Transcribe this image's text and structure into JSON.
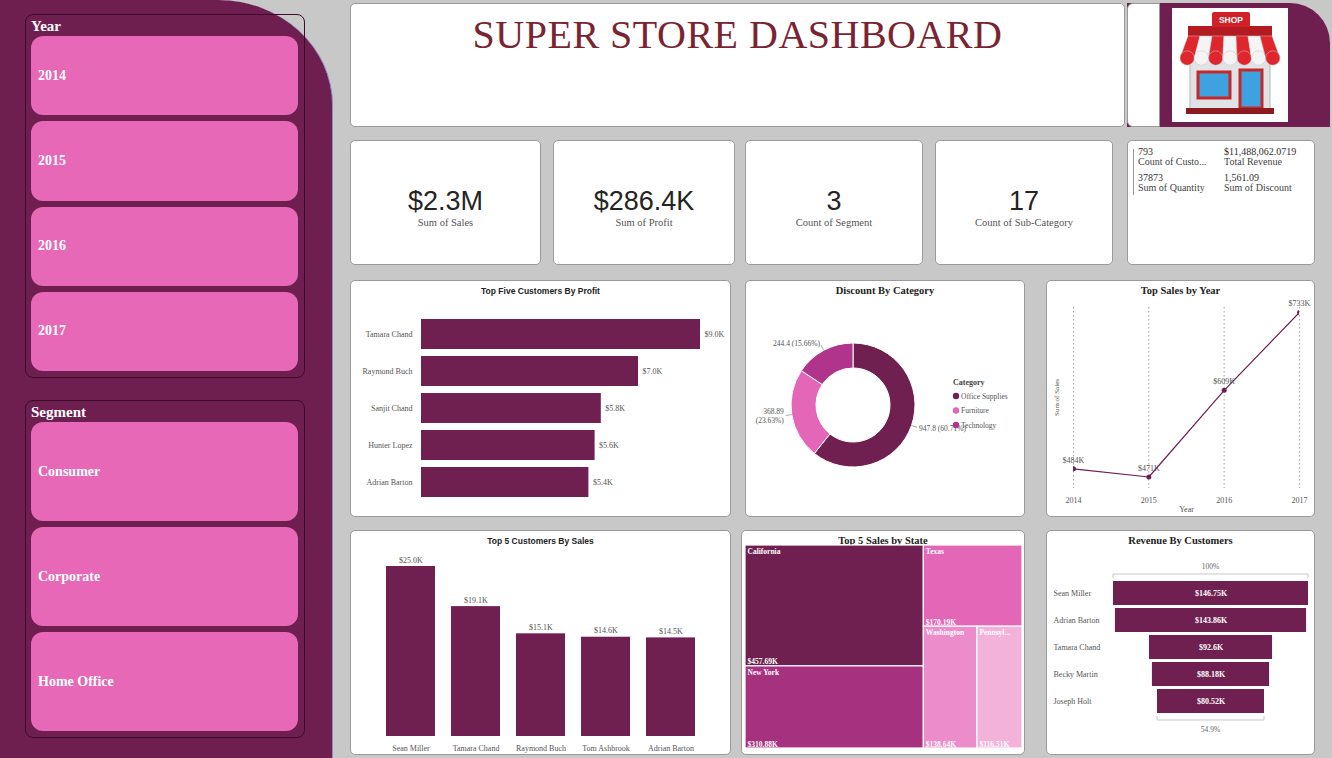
{
  "header": {
    "title": "SUPER STORE DASHBOARD",
    "icon_text": "SHOP"
  },
  "slicers": [
    {
      "title": "Year",
      "items": [
        "2014",
        "2015",
        "2016",
        "2017"
      ]
    },
    {
      "title": "Segment",
      "items": [
        "Consumer",
        "Corporate",
        "Home Office"
      ]
    }
  ],
  "cards": [
    {
      "value": "$2.3M",
      "label": "Sum of Sales"
    },
    {
      "value": "$286.4K",
      "label": "Sum of Profit"
    },
    {
      "value": "3",
      "label": "Count of Segment"
    },
    {
      "value": "17",
      "label": "Count of Sub-Category"
    }
  ],
  "multi_row_card": [
    {
      "value": "793",
      "label": "Count of Custo..."
    },
    {
      "value": "$11,488,062.0719",
      "label": "Total Revenue"
    },
    {
      "value": "37873",
      "label": "Sum of Quantity"
    },
    {
      "value": "1,561.09",
      "label": "Sum of Discount"
    }
  ],
  "chart_data": [
    {
      "type": "bar",
      "title": "Top Five Customers By Profit",
      "orientation": "horizontal",
      "categories": [
        "Tamara Chand",
        "Raymond Buch",
        "Sanjit Chand",
        "Hunter Lopez",
        "Adrian Barton"
      ],
      "values": [
        9000,
        7000,
        5800,
        5600,
        5400
      ],
      "value_labels": [
        "$9.0K",
        "$7.0K",
        "$5.8K",
        "$5.6K",
        "$5.4K"
      ],
      "color": "#701f51",
      "data_labels": true,
      "tick_labels": "y"
    },
    {
      "type": "pie",
      "title": "Discount By Category",
      "categories": [
        "Office Supplies",
        "Furniture",
        "Technology"
      ],
      "values": [
        947.8,
        368.89,
        244.4
      ],
      "value_labels": [
        "947.8 (60.71%)",
        "368.89 (23.63%)",
        "244.4 (15.66%)"
      ],
      "colors": [
        "#701f51",
        "#e466b6",
        "#b0348b"
      ],
      "legend": "right",
      "legend_title": "Category",
      "data_labels": true
    },
    {
      "type": "line",
      "title": "Top Sales by Year",
      "x": [
        2014,
        2015,
        2016,
        2017
      ],
      "values": [
        484000,
        471000,
        609000,
        733000
      ],
      "value_labels": [
        "$484K",
        "$471K",
        "$609K",
        "$733K"
      ],
      "xlabel": "Year",
      "ylabel": "Sum of Sales",
      "xlim": [
        2014,
        2017
      ],
      "xticks": [
        2014,
        2015,
        2016,
        2017
      ],
      "color": "#701f51",
      "marker": "circle",
      "grid": true,
      "data_labels": true,
      "tick_labels": "x"
    },
    {
      "type": "bar",
      "title": "Top 5 Customers By Sales",
      "categories": [
        "Sean Miller",
        "Tamara Chand",
        "Raymond Buch",
        "Tom Ashbrook",
        "Adrian Barton"
      ],
      "values": [
        25000,
        19100,
        15100,
        14600,
        14500
      ],
      "value_labels": [
        "$25.0K",
        "$19.1K",
        "$15.1K",
        "$14.6K",
        "$14.5K"
      ],
      "color": "#701f51",
      "data_labels": true,
      "tick_labels": "x"
    },
    {
      "type": "treemap",
      "title": "Top 5 Sales by State",
      "categories": [
        "California",
        "New York",
        "Texas",
        "Washington",
        "Pennsyl..."
      ],
      "values": [
        457690,
        310880,
        170190,
        138640,
        116510
      ],
      "value_labels": [
        "$457.69K",
        "$310.88K",
        "$170.19K",
        "$138.64K",
        "$116.51K"
      ],
      "colors": [
        "#701f51",
        "#a5317f",
        "#e466b6",
        "#ec8ccb",
        "#f2b2da"
      ],
      "data_labels": true
    },
    {
      "type": "funnel",
      "title": "Revenue By Customers",
      "categories": [
        "Sean Miller",
        "Adrian Barton",
        "Tamara Chand",
        "Becky Martin",
        "Joseph Holt"
      ],
      "values": [
        146750,
        143860,
        92600,
        88180,
        80520
      ],
      "value_labels": [
        "$146.75K",
        "$143.86K",
        "$92.6K",
        "$88.18K",
        "$80.52K"
      ],
      "percent_labels": [
        {
          "value": 100,
          "label": "100%"
        },
        {
          "value": 54.9,
          "label": "54.9%"
        }
      ],
      "color": "#701f51",
      "data_labels": true,
      "tick_labels": "y"
    }
  ]
}
